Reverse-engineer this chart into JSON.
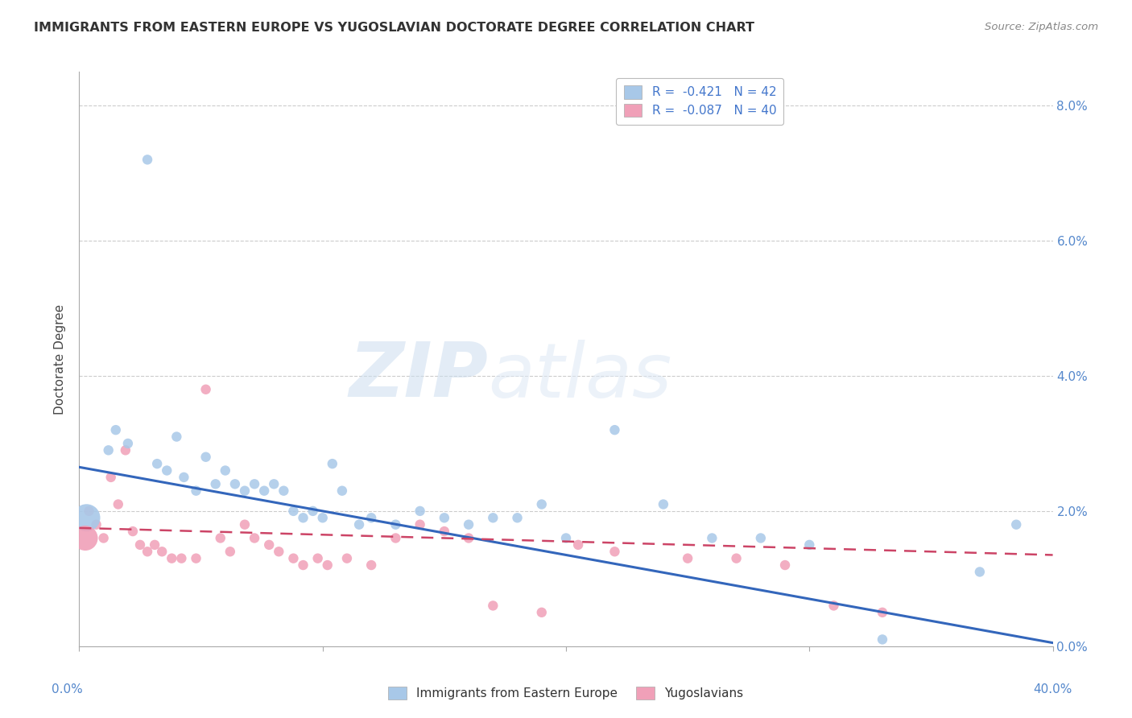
{
  "title": "IMMIGRANTS FROM EASTERN EUROPE VS YUGOSLAVIAN DOCTORATE DEGREE CORRELATION CHART",
  "source": "Source: ZipAtlas.com",
  "ylabel": "Doctorate Degree",
  "xmin": 0.0,
  "xmax": 40.0,
  "ymin": 0.0,
  "ymax": 8.5,
  "blue_color": "#a8c8e8",
  "pink_color": "#f0a0b8",
  "blue_line_color": "#3366bb",
  "pink_line_color": "#cc4466",
  "watermark_zip": "ZIP",
  "watermark_atlas": "atlas",
  "blue_scatter_x": [
    1.2,
    1.5,
    2.0,
    2.8,
    3.2,
    3.6,
    4.0,
    4.3,
    4.8,
    5.2,
    5.6,
    6.0,
    6.4,
    6.8,
    7.2,
    7.6,
    8.0,
    8.4,
    8.8,
    9.2,
    9.6,
    10.0,
    10.4,
    10.8,
    11.5,
    12.0,
    13.0,
    14.0,
    15.0,
    16.0,
    17.0,
    18.0,
    19.0,
    20.0,
    22.0,
    24.0,
    26.0,
    28.0,
    30.0,
    33.0,
    37.0,
    38.5
  ],
  "blue_scatter_y": [
    2.9,
    3.2,
    3.0,
    7.2,
    2.7,
    2.6,
    3.1,
    2.5,
    2.3,
    2.8,
    2.4,
    2.6,
    2.4,
    2.3,
    2.4,
    2.3,
    2.4,
    2.3,
    2.0,
    1.9,
    2.0,
    1.9,
    2.7,
    2.3,
    1.8,
    1.9,
    1.8,
    2.0,
    1.9,
    1.8,
    1.9,
    1.9,
    2.1,
    1.6,
    3.2,
    2.1,
    1.6,
    1.6,
    1.5,
    0.1,
    1.1,
    1.8
  ],
  "blue_line_x0": 0.0,
  "blue_line_x1": 40.0,
  "blue_line_y0": 2.65,
  "blue_line_y1": 0.05,
  "pink_scatter_x": [
    0.4,
    0.7,
    1.0,
    1.3,
    1.6,
    1.9,
    2.2,
    2.5,
    2.8,
    3.1,
    3.4,
    3.8,
    4.2,
    4.8,
    5.2,
    5.8,
    6.2,
    6.8,
    7.2,
    7.8,
    8.2,
    8.8,
    9.2,
    9.8,
    10.2,
    11.0,
    12.0,
    13.0,
    14.0,
    15.0,
    16.0,
    17.0,
    19.0,
    20.5,
    22.0,
    25.0,
    27.0,
    29.0,
    31.0,
    33.0
  ],
  "pink_scatter_y": [
    2.0,
    1.8,
    1.6,
    2.5,
    2.1,
    2.9,
    1.7,
    1.5,
    1.4,
    1.5,
    1.4,
    1.3,
    1.3,
    1.3,
    3.8,
    1.6,
    1.4,
    1.8,
    1.6,
    1.5,
    1.4,
    1.3,
    1.2,
    1.3,
    1.2,
    1.3,
    1.2,
    1.6,
    1.8,
    1.7,
    1.6,
    0.6,
    0.5,
    1.5,
    1.4,
    1.3,
    1.3,
    1.2,
    0.6,
    0.5
  ],
  "pink_line_x0": 0.0,
  "pink_line_x1": 40.0,
  "pink_line_y0": 1.75,
  "pink_line_y1": 1.35,
  "blue_large_x": 0.3,
  "blue_large_y": 1.9,
  "blue_large_size": 600,
  "pink_large_x": 0.25,
  "pink_large_y": 1.6,
  "pink_large_size": 500,
  "legend1_text": "R =  -0.421   N = 42",
  "legend2_text": "R =  -0.087   N = 40",
  "bottom_legend1": "Immigrants from Eastern Europe",
  "bottom_legend2": "Yugoslavians"
}
